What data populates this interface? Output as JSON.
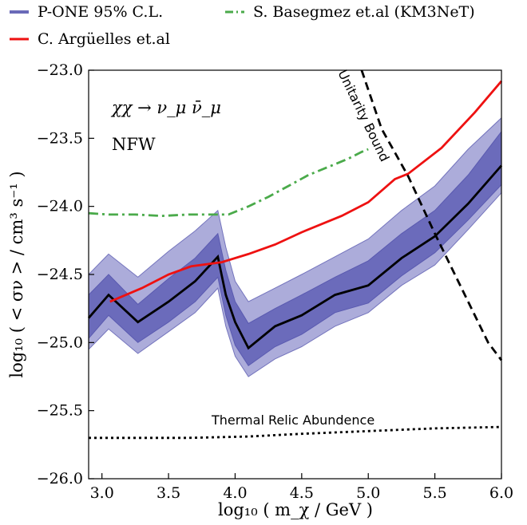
{
  "chart_data": {
    "type": "line",
    "xlabel": "log₁₀ ( m_χ / GeV )",
    "ylabel": "log₁₀ ( < σν > / cm³ s⁻¹ )",
    "xlim": [
      2.9,
      6.0
    ],
    "ylim": [
      -26.0,
      -23.0
    ],
    "xticks": [
      3.0,
      3.5,
      4.0,
      4.5,
      5.0,
      5.5,
      6.0
    ],
    "yticks": [
      -26.0,
      -25.5,
      -25.0,
      -24.5,
      -24.0,
      -23.5,
      -23.0
    ],
    "xtick_labels": [
      "3.0",
      "3.5",
      "4.0",
      "4.5",
      "5.0",
      "5.5",
      "6.0"
    ],
    "ytick_labels": [
      "−26.0",
      "−25.5",
      "−25.0",
      "−24.5",
      "−24.0",
      "−23.5",
      "−23.0"
    ],
    "grid": false,
    "legend_placement": "top",
    "annotations": {
      "process": "χχ → ν_μ ν̄_μ",
      "profile": "NFW",
      "unitarity": "Unitarity Bound",
      "thermal": "Thermal Relic Abundence"
    },
    "series": [
      {
        "name": "P-ONE 95% C.L.",
        "kind": "band",
        "color": "#6a6ab8",
        "x": [
          2.9,
          3.05,
          3.27,
          3.5,
          3.7,
          3.87,
          3.93,
          4.0,
          4.1,
          4.3,
          4.5,
          4.75,
          5.0,
          5.25,
          5.5,
          5.75,
          6.0
        ],
        "median": [
          -24.82,
          -24.65,
          -24.85,
          -24.7,
          -24.55,
          -24.37,
          -24.65,
          -24.85,
          -25.04,
          -24.88,
          -24.8,
          -24.65,
          -24.58,
          -24.38,
          -24.22,
          -23.98,
          -23.7
        ],
        "inner_upper": [
          -24.65,
          -24.5,
          -24.72,
          -24.53,
          -24.38,
          -24.2,
          -24.47,
          -24.7,
          -24.86,
          -24.75,
          -24.65,
          -24.52,
          -24.4,
          -24.2,
          -24.03,
          -23.77,
          -23.45
        ],
        "inner_lower": [
          -24.97,
          -24.8,
          -25.0,
          -24.85,
          -24.7,
          -24.52,
          -24.8,
          -25.02,
          -25.17,
          -25.03,
          -24.94,
          -24.78,
          -24.71,
          -24.51,
          -24.34,
          -24.1,
          -23.84
        ],
        "outer_upper": [
          -24.5,
          -24.35,
          -24.52,
          -24.33,
          -24.18,
          -24.03,
          -24.3,
          -24.55,
          -24.7,
          -24.6,
          -24.5,
          -24.37,
          -24.24,
          -24.03,
          -23.85,
          -23.58,
          -23.35
        ],
        "outer_lower": [
          -25.05,
          -24.9,
          -25.08,
          -24.92,
          -24.78,
          -24.6,
          -24.88,
          -25.1,
          -25.25,
          -25.12,
          -25.03,
          -24.88,
          -24.78,
          -24.58,
          -24.43,
          -24.17,
          -23.9
        ]
      },
      {
        "name": "C. Argüelles et.al",
        "kind": "line",
        "color": "#ee1111",
        "x": [
          3.06,
          3.3,
          3.5,
          3.67,
          3.9,
          4.1,
          4.3,
          4.5,
          4.8,
          5.0,
          5.2,
          5.3,
          5.55,
          5.8,
          6.0
        ],
        "y": [
          -24.7,
          -24.6,
          -24.5,
          -24.44,
          -24.41,
          -24.35,
          -24.28,
          -24.19,
          -24.07,
          -23.97,
          -23.8,
          -23.76,
          -23.57,
          -23.31,
          -23.08
        ]
      },
      {
        "name": "S. Basegmez et.al (KM3NeT)",
        "kind": "line",
        "color": "#4aaa4a",
        "x": [
          2.9,
          3.05,
          3.25,
          3.45,
          3.65,
          3.85,
          3.95,
          4.1,
          4.25,
          4.4,
          4.55,
          4.7,
          4.85,
          4.95,
          5.0
        ],
        "y": [
          -24.05,
          -24.06,
          -24.06,
          -24.07,
          -24.06,
          -24.06,
          -24.06,
          -24.0,
          -23.93,
          -23.85,
          -23.77,
          -23.71,
          -23.65,
          -23.6,
          -23.58
        ]
      },
      {
        "kind": "line",
        "color": "#000000",
        "x": [
          4.95,
          5.1,
          5.3,
          5.5,
          5.7,
          5.9,
          6.0
        ],
        "y": [
          -23.0,
          -23.43,
          -23.78,
          -24.2,
          -24.6,
          -25.0,
          -25.13
        ]
      },
      {
        "kind": "line",
        "color": "#000000",
        "x": [
          2.9,
          3.25,
          3.65,
          4.1,
          4.5,
          5.0,
          5.5,
          6.0
        ],
        "y": [
          -25.7,
          -25.7,
          -25.7,
          -25.69,
          -25.67,
          -25.65,
          -25.63,
          -25.62
        ]
      }
    ]
  }
}
